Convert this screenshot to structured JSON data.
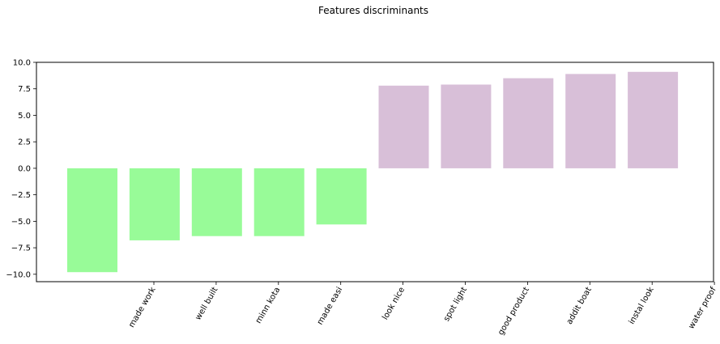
{
  "chart_data": {
    "type": "bar",
    "title": "Features discriminants",
    "xlabel": "",
    "ylabel": "",
    "categories": [
      "made work",
      "well built",
      "minn kota",
      "made easi",
      "look nice",
      "spot light",
      "good product",
      "addit boat",
      "instal look",
      "water proof"
    ],
    "values": [
      -9.8,
      -6.8,
      -6.4,
      -6.4,
      -5.3,
      7.8,
      7.9,
      8.5,
      8.9,
      9.1
    ],
    "ylim": [
      -10.7,
      10.0
    ],
    "yticks": [
      "10.0",
      "7.5",
      "5.0",
      "2.5",
      "0.0",
      "−2.5",
      "−5.0",
      "−7.5",
      "−10.0"
    ],
    "negative_color": "#98fb98",
    "positive_color": "#d8bfd8",
    "grid": false,
    "legend": "none"
  }
}
